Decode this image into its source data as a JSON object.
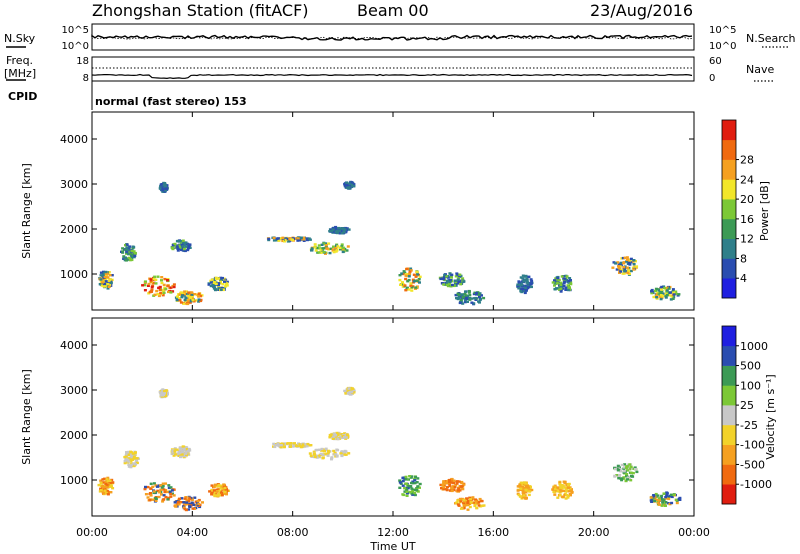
{
  "header": {
    "station_title": "Zhongshan Station (fitACF)",
    "beam": "Beam 00",
    "date": "23/Aug/2016"
  },
  "params": {
    "nsky_label": "N.Sky",
    "nsearch_label": "N.Search",
    "noise_ticks_left": [
      "10^5",
      "10^0"
    ],
    "noise_ticks_right": [
      "10^5",
      "10^0"
    ],
    "freq_label_top": "Freq.",
    "freq_label_unit": "[MHz]",
    "freq_ticks": [
      "18",
      "8"
    ],
    "nave_label": "Nave",
    "nave_ticks": [
      "60",
      "0"
    ],
    "cpid_label": "CPID",
    "cpid_text": "normal (fast stereo) 153"
  },
  "chart_data": [
    {
      "type": "heatmap",
      "name": "power",
      "ylabel": "Slant Range [km]",
      "yticks": [
        "1000",
        "2000",
        "3000",
        "4000"
      ],
      "ylim": [
        200,
        4600
      ],
      "xlim": [
        0,
        24
      ],
      "colorbar": {
        "label": "Power [dB]",
        "ticks": [
          "4",
          "8",
          "12",
          "16",
          "20",
          "24",
          "28"
        ],
        "colors": [
          "#1f1fe0",
          "#2a4db0",
          "#2f7f8a",
          "#3c9a55",
          "#7cc836",
          "#f2e62a",
          "#f5a020",
          "#f06a10",
          "#e01d10"
        ]
      },
      "blobs": [
        {
          "t": 0.5,
          "r": 900,
          "w": 0.6,
          "h": 400,
          "c": [
            1,
            2,
            5,
            6
          ]
        },
        {
          "t": 1.4,
          "r": 1500,
          "w": 0.6,
          "h": 400,
          "c": [
            1,
            2,
            3,
            4
          ]
        },
        {
          "t": 2.6,
          "r": 750,
          "w": 1.3,
          "h": 450,
          "c": [
            5,
            6,
            7,
            4,
            8
          ]
        },
        {
          "t": 3.8,
          "r": 500,
          "w": 1.2,
          "h": 300,
          "c": [
            5,
            6,
            2,
            7
          ]
        },
        {
          "t": 2.8,
          "r": 2950,
          "w": 0.3,
          "h": 200,
          "c": [
            1,
            2
          ]
        },
        {
          "t": 3.5,
          "r": 1650,
          "w": 0.8,
          "h": 250,
          "c": [
            1,
            2,
            4
          ]
        },
        {
          "t": 5.0,
          "r": 800,
          "w": 0.8,
          "h": 300,
          "c": [
            1,
            2,
            5
          ]
        },
        {
          "t": 7.8,
          "r": 1800,
          "w": 1.8,
          "h": 100,
          "c": [
            1,
            2,
            5,
            6
          ]
        },
        {
          "t": 9.4,
          "r": 1600,
          "w": 1.6,
          "h": 250,
          "c": [
            3,
            4,
            5,
            6,
            2
          ]
        },
        {
          "t": 9.8,
          "r": 2000,
          "w": 0.8,
          "h": 150,
          "c": [
            1,
            2
          ]
        },
        {
          "t": 10.2,
          "r": 3000,
          "w": 0.4,
          "h": 150,
          "c": [
            1,
            2
          ]
        },
        {
          "t": 12.6,
          "r": 900,
          "w": 0.9,
          "h": 500,
          "c": [
            5,
            6,
            7,
            2,
            3
          ]
        },
        {
          "t": 14.3,
          "r": 900,
          "w": 1.0,
          "h": 300,
          "c": [
            1,
            2,
            4
          ]
        },
        {
          "t": 15.0,
          "r": 500,
          "w": 1.2,
          "h": 300,
          "c": [
            1,
            2,
            3
          ]
        },
        {
          "t": 17.2,
          "r": 800,
          "w": 0.6,
          "h": 400,
          "c": [
            1,
            2
          ]
        },
        {
          "t": 18.7,
          "r": 800,
          "w": 0.8,
          "h": 400,
          "c": [
            1,
            2,
            4
          ]
        },
        {
          "t": 21.2,
          "r": 1200,
          "w": 1.0,
          "h": 400,
          "c": [
            1,
            2,
            5,
            6
          ]
        },
        {
          "t": 22.8,
          "r": 600,
          "w": 1.2,
          "h": 300,
          "c": [
            1,
            2,
            4,
            5,
            6,
            3
          ]
        }
      ]
    },
    {
      "type": "heatmap",
      "name": "velocity",
      "ylabel": "Slant Range [km]",
      "yticks": [
        "1000",
        "2000",
        "3000",
        "4000"
      ],
      "ylim": [
        200,
        4600
      ],
      "xlim": [
        0,
        24
      ],
      "xticks": [
        "00:00",
        "04:00",
        "08:00",
        "12:00",
        "16:00",
        "20:00",
        "00:00"
      ],
      "xlabel": "Time UT",
      "colorbar": {
        "label": "Velocity [m s⁻¹]",
        "ticks": [
          "-1000",
          "-500",
          "-100",
          "-25",
          "25",
          "100",
          "500",
          "1000"
        ],
        "colors": [
          "#e01d10",
          "#f06a10",
          "#f5a020",
          "#f2d22a",
          "#c8c8c8",
          "#7cc836",
          "#3c9a55",
          "#2a4db0",
          "#1f1fe0"
        ]
      },
      "blobs": [
        {
          "t": 0.5,
          "r": 900,
          "w": 0.6,
          "h": 400,
          "c": [
            1,
            2,
            3
          ]
        },
        {
          "t": 1.5,
          "r": 1500,
          "w": 0.6,
          "h": 400,
          "c": [
            3,
            4
          ]
        },
        {
          "t": 2.6,
          "r": 750,
          "w": 1.3,
          "h": 450,
          "c": [
            1,
            2,
            6,
            7
          ]
        },
        {
          "t": 3.8,
          "r": 500,
          "w": 1.2,
          "h": 300,
          "c": [
            1,
            2,
            7
          ]
        },
        {
          "t": 2.8,
          "r": 2950,
          "w": 0.3,
          "h": 200,
          "c": [
            3,
            4
          ]
        },
        {
          "t": 3.5,
          "r": 1650,
          "w": 0.8,
          "h": 250,
          "c": [
            3,
            4
          ]
        },
        {
          "t": 5.0,
          "r": 800,
          "w": 0.8,
          "h": 300,
          "c": [
            1,
            2,
            3
          ]
        },
        {
          "t": 7.8,
          "r": 1800,
          "w": 1.8,
          "h": 100,
          "c": [
            4,
            3
          ]
        },
        {
          "t": 9.4,
          "r": 1600,
          "w": 1.6,
          "h": 250,
          "c": [
            4,
            3
          ]
        },
        {
          "t": 9.8,
          "r": 2000,
          "w": 0.8,
          "h": 150,
          "c": [
            4,
            3
          ]
        },
        {
          "t": 10.2,
          "r": 3000,
          "w": 0.4,
          "h": 150,
          "c": [
            4,
            3
          ]
        },
        {
          "t": 12.6,
          "r": 900,
          "w": 0.9,
          "h": 500,
          "c": [
            6,
            7,
            5
          ]
        },
        {
          "t": 14.3,
          "r": 900,
          "w": 1.0,
          "h": 300,
          "c": [
            1,
            2
          ]
        },
        {
          "t": 15.0,
          "r": 500,
          "w": 1.2,
          "h": 300,
          "c": [
            1,
            2,
            3
          ]
        },
        {
          "t": 17.2,
          "r": 800,
          "w": 0.6,
          "h": 400,
          "c": [
            2,
            3
          ]
        },
        {
          "t": 18.7,
          "r": 800,
          "w": 0.8,
          "h": 400,
          "c": [
            2,
            3
          ]
        },
        {
          "t": 21.2,
          "r": 1200,
          "w": 1.0,
          "h": 400,
          "c": [
            5,
            6,
            4
          ]
        },
        {
          "t": 22.8,
          "r": 600,
          "w": 1.2,
          "h": 300,
          "c": [
            5,
            6,
            7,
            2
          ]
        }
      ]
    }
  ]
}
